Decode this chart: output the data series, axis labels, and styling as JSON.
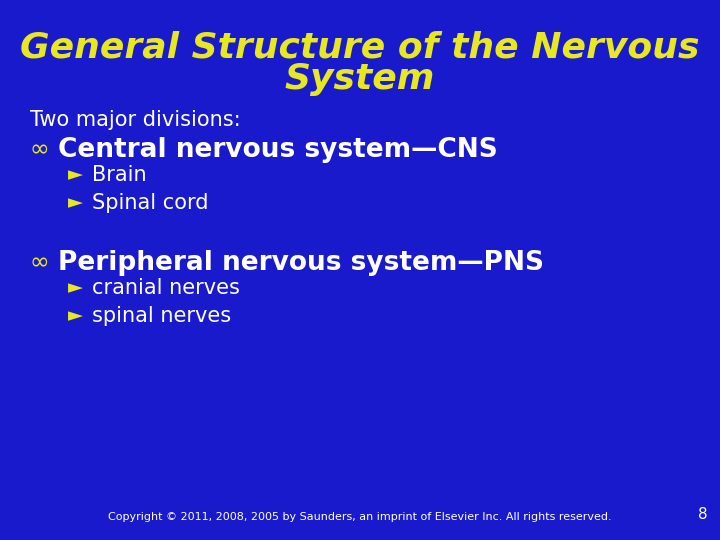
{
  "background_color": "#1a1acd",
  "title_line1": "General Structure of the Nervous",
  "title_line2": "System",
  "title_color": "#e8e820",
  "title_fontsize": 26,
  "body_text_color": "#ffffff",
  "intro_text": "Two major divisions:",
  "intro_fontsize": 15,
  "main_bullet": "∞ ",
  "sub_bullet_symbol": "►",
  "section1_header": "Central nervous system—CNS",
  "section1_header_fontsize": 19,
  "section1_items": [
    "Brain",
    "Spinal cord"
  ],
  "section2_header": "Peripheral nervous system—PNS",
  "section2_header_fontsize": 19,
  "section2_items": [
    "cranial nerves",
    "spinal nerves"
  ],
  "item_fontsize": 15,
  "copyright_text": "Copyright © 2011, 2008, 2005 by Saunders, an imprint of Elsevier Inc. All rights reserved.",
  "copyright_fontsize": 8,
  "page_number": "8",
  "page_number_fontsize": 11
}
